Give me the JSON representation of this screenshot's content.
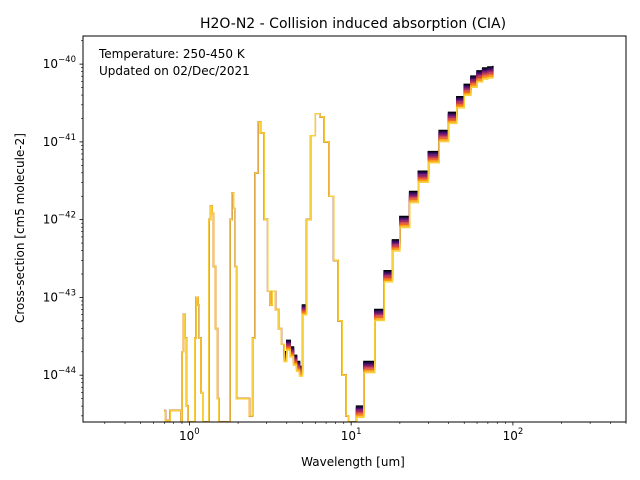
{
  "chart_data": {
    "type": "line",
    "title": "H2O-N2 - Collision induced absorption (CIA)",
    "xlabel": "Wavelength [um]",
    "ylabel": "Cross-section [cm5 molecule-2]",
    "xscale": "log",
    "yscale": "log",
    "xlim": [
      0.22,
      500
    ],
    "ylim": [
      2.5e-45,
      2.3e-40
    ],
    "grid": false,
    "legend": "none",
    "annotations": [
      "Temperature: 250-450 K",
      "Updated on 02/Dec/2021"
    ],
    "x_ticks": [
      {
        "value": 1,
        "base": "10",
        "exp": "0"
      },
      {
        "value": 10,
        "base": "10",
        "exp": "1"
      },
      {
        "value": 100,
        "base": "10",
        "exp": "2"
      }
    ],
    "y_ticks": [
      {
        "value": 1e-44,
        "base": "10",
        "exp": "−44"
      },
      {
        "value": 1e-43,
        "base": "10",
        "exp": "−43"
      },
      {
        "value": 1e-42,
        "base": "10",
        "exp": "−42"
      },
      {
        "value": 1e-41,
        "base": "10",
        "exp": "−41"
      },
      {
        "value": 1e-40,
        "base": "10",
        "exp": "−40"
      }
    ],
    "series": [
      {
        "color": "#000004",
        "temperature_scale": 1.0
      },
      {
        "color": "#1b0c41",
        "temperature_scale": 0.965
      },
      {
        "color": "#4a0c6b",
        "temperature_scale": 0.93
      },
      {
        "color": "#781c6d",
        "temperature_scale": 0.895
      },
      {
        "color": "#a52c60",
        "temperature_scale": 0.86
      },
      {
        "color": "#cf4446",
        "temperature_scale": 0.825
      },
      {
        "color": "#ed6925",
        "temperature_scale": 0.79
      },
      {
        "color": "#fb9b06",
        "temperature_scale": 0.755
      },
      {
        "color": "#f7d13d",
        "temperature_scale": 0.72
      }
    ],
    "shared_curve": [
      [
        0.7,
        3.5e-45
      ],
      [
        0.71,
        2.6e-45
      ],
      [
        0.75,
        2.6e-45
      ],
      [
        0.76,
        3.5e-45
      ],
      [
        0.89,
        2.5e-45
      ],
      [
        0.9,
        2e-44
      ],
      [
        0.92,
        6e-44
      ],
      [
        0.94,
        3e-44
      ],
      [
        0.96,
        4e-45
      ],
      [
        0.98,
        2.5e-45
      ],
      [
        1.06,
        2.5e-45
      ],
      [
        1.08,
        3e-44
      ],
      [
        1.1,
        1e-43
      ],
      [
        1.13,
        8e-44
      ],
      [
        1.15,
        3e-44
      ],
      [
        1.18,
        6e-45
      ],
      [
        1.21,
        2.5e-45
      ],
      [
        1.3,
        2.5e-45
      ],
      [
        1.32,
        1e-42
      ],
      [
        1.35,
        1.5e-42
      ],
      [
        1.38,
        1.2e-42
      ],
      [
        1.41,
        2.5e-43
      ],
      [
        1.45,
        4e-44
      ],
      [
        1.49,
        5e-45
      ],
      [
        1.52,
        2.5e-45
      ],
      [
        1.75,
        2.5e-45
      ],
      [
        1.78,
        1e-42
      ],
      [
        1.83,
        2.2e-42
      ],
      [
        1.88,
        1.4e-42
      ],
      [
        1.92,
        2.5e-43
      ],
      [
        1.95,
        5e-45
      ],
      [
        2.35,
        3e-45
      ],
      [
        2.45,
        3e-44
      ],
      [
        2.55,
        4e-42
      ],
      [
        2.65,
        1.8e-41
      ],
      [
        2.75,
        1.3e-41
      ],
      [
        2.9,
        1e-42
      ],
      [
        3.05,
        1.2e-43
      ],
      [
        3.15,
        8e-44
      ],
      [
        3.25,
        1.2e-43
      ],
      [
        3.4,
        7e-44
      ],
      [
        3.55,
        4e-44
      ],
      [
        3.7,
        2.5e-44
      ],
      [
        3.85,
        2e-44
      ],
      [
        4.0,
        2.8e-44
      ],
      [
        4.2,
        2.3e-44
      ],
      [
        4.4,
        1.8e-44
      ],
      [
        4.6,
        1.5e-44
      ],
      [
        4.8,
        1.3e-44
      ],
      [
        5.0,
        8e-44
      ],
      [
        5.3,
        1e-42
      ],
      [
        5.6,
        1.2e-41
      ],
      [
        6.0,
        2.3e-41
      ],
      [
        6.4,
        2.1e-41
      ],
      [
        6.8,
        1e-41
      ],
      [
        7.3,
        2e-42
      ],
      [
        7.8,
        3e-43
      ],
      [
        8.3,
        5e-44
      ],
      [
        8.8,
        1e-44
      ],
      [
        9.3,
        3e-45
      ],
      [
        9.6,
        2.5e-45
      ],
      [
        10.2,
        2.5e-45
      ],
      [
        10.8,
        4e-45
      ],
      [
        12,
        1.5e-44
      ],
      [
        14,
        7e-44
      ],
      [
        16,
        2.2e-43
      ],
      [
        18,
        5.5e-43
      ],
      [
        20,
        1.1e-42
      ],
      [
        23,
        2.3e-42
      ],
      [
        26,
        4.2e-42
      ],
      [
        30,
        7.5e-42
      ],
      [
        35,
        1.4e-41
      ],
      [
        40,
        2.4e-41
      ],
      [
        45,
        3.8e-41
      ],
      [
        50,
        5.5e-41
      ],
      [
        55,
        7e-41
      ],
      [
        60,
        8.2e-41
      ],
      [
        65,
        8.9e-41
      ],
      [
        70,
        9.2e-41
      ],
      [
        75,
        9.3e-41
      ],
      [
        76,
        9.3e-41
      ]
    ]
  }
}
